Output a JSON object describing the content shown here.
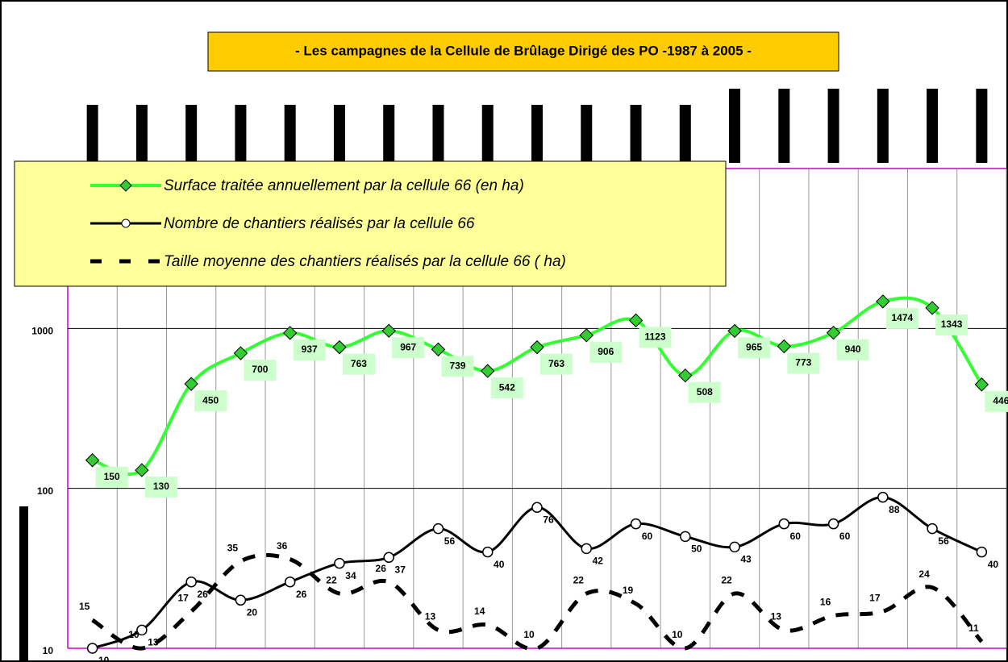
{
  "chart_data": {
    "type": "line",
    "title": "- Les campagnes  de  la Cellule de  Brûlage Dirigé des  PO -1987 à 2005 -",
    "log_scale": true,
    "grid": true,
    "ylim": [
      10,
      10000
    ],
    "yticks": [
      10,
      100,
      1000
    ],
    "series": [
      {
        "name": "Surface  traitée annuellement par la cellule 66  (en ha)",
        "color": "#33ff33",
        "values": [
          150,
          130,
          450,
          700,
          937,
          763,
          967,
          739,
          542,
          763,
          906,
          1123,
          508,
          965,
          773,
          940,
          1474,
          1343,
          446
        ]
      },
      {
        "name": "Nombre  de chantiers réalisés par la cellule 66",
        "color": "#000000",
        "values": [
          10,
          13,
          26,
          20,
          26,
          34,
          37,
          56,
          40,
          76,
          42,
          60,
          50,
          43,
          60,
          60,
          88,
          56,
          40
        ]
      },
      {
        "name": "Taille moyenne des chantiers  réalisés par la cellule 66  ( ha)",
        "color": "#000000",
        "values": [
          15,
          10,
          17,
          35,
          36,
          22,
          26,
          13,
          14,
          10,
          22,
          19,
          10,
          22,
          13,
          16,
          17,
          24,
          11
        ]
      }
    ]
  }
}
